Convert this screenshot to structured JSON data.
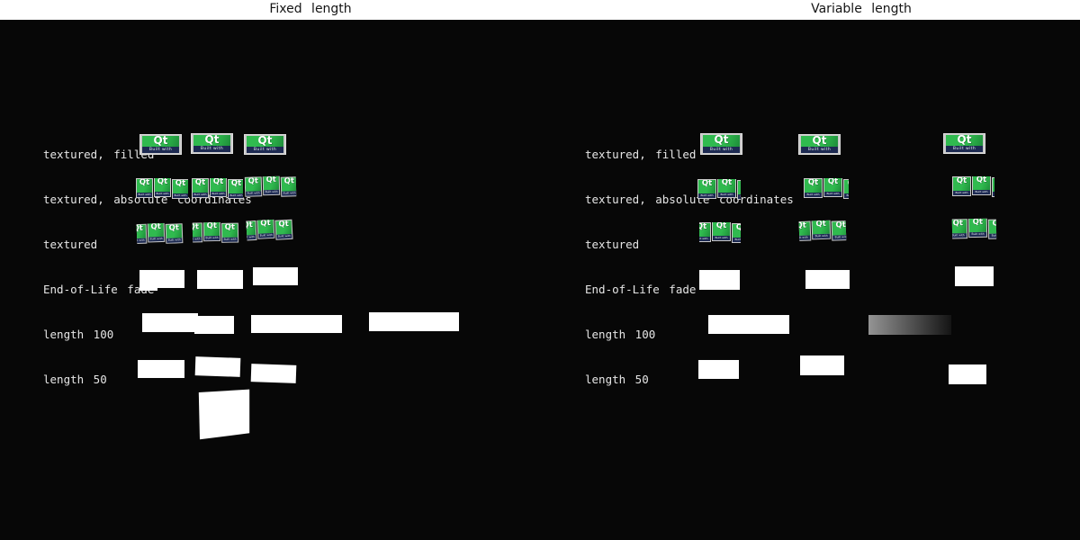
{
  "header": {
    "left_title": "Fixed length",
    "right_title": "Variable length"
  },
  "rows": [
    {
      "label": "textured, filled"
    },
    {
      "label": "textured, absolute coordinates"
    },
    {
      "label": "textured"
    },
    {
      "label": "End-of-Life fade"
    },
    {
      "label": "length 100"
    },
    {
      "label": "length 50"
    }
  ],
  "tile": {
    "logo": "Qt",
    "banner": "Built with"
  },
  "colors": {
    "background": "#070707",
    "header_bg": "#ffffff",
    "header_text": "#151515",
    "label_text": "#e6e6e6",
    "qt_green": "#30ba4f",
    "qt_green_dark": "#1e8c3a",
    "qt_navy": "#1d2a52",
    "tile_frame": "#c9c9c9",
    "band_white": "#ffffff",
    "fade_from": "#949494",
    "fade_to": "#141414"
  }
}
